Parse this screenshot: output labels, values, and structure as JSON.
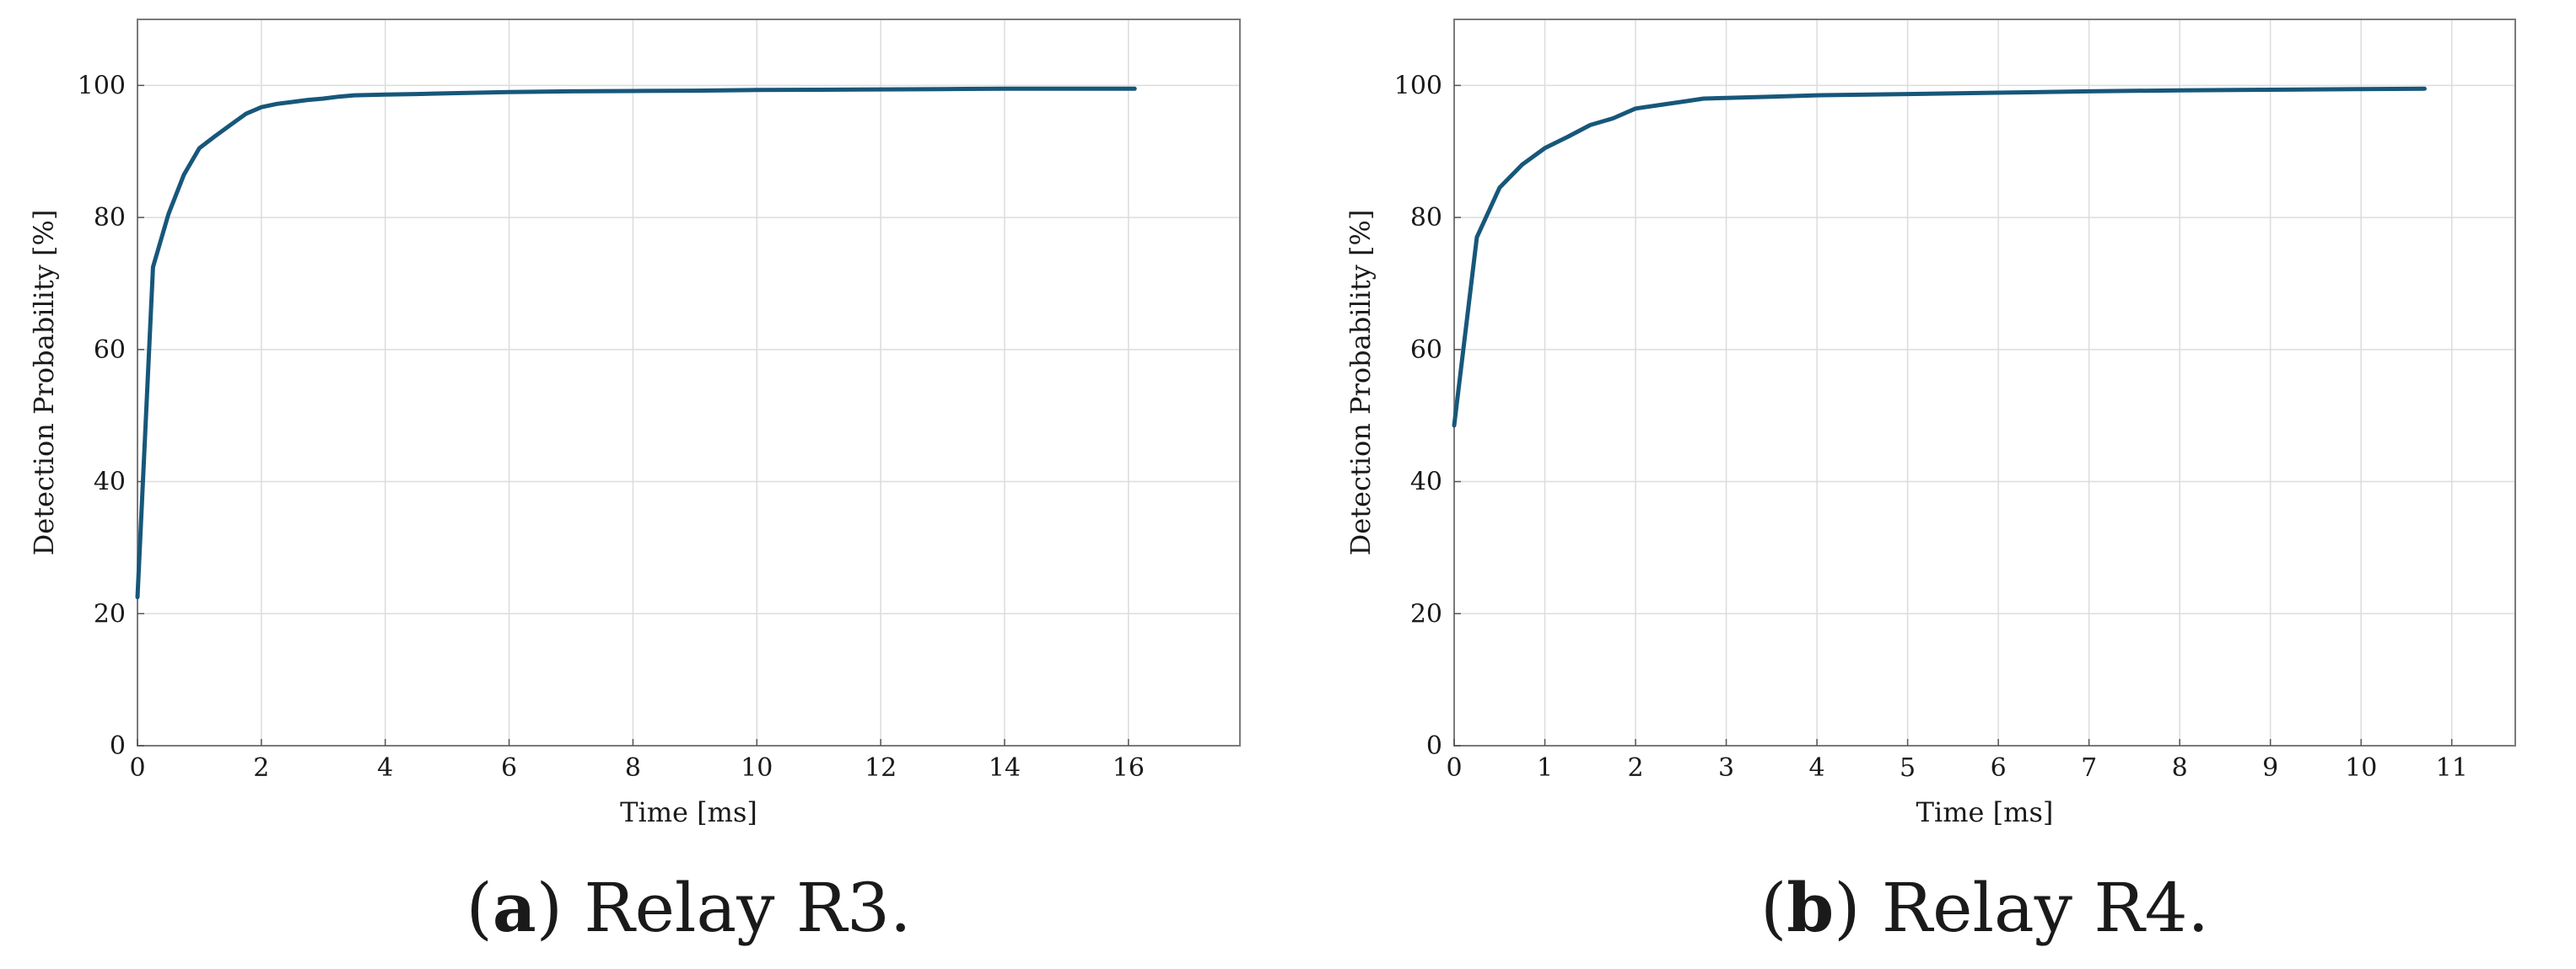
{
  "chart_data": [
    {
      "type": "line",
      "caption_letter": "a",
      "caption_text": "Relay R3.",
      "xlabel": "Time [ms]",
      "ylabel": "Detection Probability [%]",
      "xlim": [
        0,
        17.8
      ],
      "ylim": [
        0,
        110
      ],
      "xticks": [
        0,
        2,
        4,
        6,
        8,
        10,
        12,
        14,
        16
      ],
      "yticks": [
        0,
        20,
        40,
        60,
        80,
        100
      ],
      "grid": true,
      "line_color": "#17577a",
      "series": [
        {
          "x": [
            0.0,
            0.25,
            0.5,
            0.75,
            1.0,
            1.25,
            1.5,
            1.75,
            2.0,
            2.25,
            2.5,
            2.75,
            3.0,
            3.25,
            3.5,
            4.0,
            4.5,
            5.0,
            5.5,
            6.0,
            7.0,
            8.0,
            9.0,
            10.0,
            11.0,
            12.0,
            13.0,
            14.0,
            15.0,
            16.1
          ],
          "y": [
            22.5,
            72.5,
            80.5,
            86.5,
            90.5,
            92.3,
            94.0,
            95.7,
            96.7,
            97.2,
            97.5,
            97.8,
            98.0,
            98.3,
            98.5,
            98.6,
            98.7,
            98.8,
            98.9,
            99.0,
            99.1,
            99.15,
            99.2,
            99.3,
            99.35,
            99.4,
            99.45,
            99.5,
            99.5,
            99.5
          ]
        }
      ]
    },
    {
      "type": "line",
      "caption_letter": "b",
      "caption_text": "Relay R4.",
      "xlabel": "Time [ms]",
      "ylabel": "Detection Probability [%]",
      "xlim": [
        0,
        11.7
      ],
      "ylim": [
        0,
        110
      ],
      "xticks": [
        0,
        1,
        2,
        3,
        4,
        5,
        6,
        7,
        8,
        9,
        10,
        11
      ],
      "yticks": [
        0,
        20,
        40,
        60,
        80,
        100
      ],
      "grid": true,
      "line_color": "#17577a",
      "series": [
        {
          "x": [
            0.0,
            0.25,
            0.5,
            0.75,
            1.0,
            1.25,
            1.5,
            1.75,
            2.0,
            2.25,
            2.5,
            2.75,
            3.0,
            3.5,
            4.0,
            5.0,
            6.0,
            7.0,
            8.0,
            9.0,
            10.0,
            10.7
          ],
          "y": [
            48.5,
            77.0,
            84.5,
            88.0,
            90.5,
            92.2,
            94.0,
            95.0,
            96.5,
            97.0,
            97.5,
            98.0,
            98.1,
            98.3,
            98.5,
            98.7,
            98.9,
            99.1,
            99.25,
            99.35,
            99.45,
            99.5
          ]
        }
      ]
    }
  ]
}
